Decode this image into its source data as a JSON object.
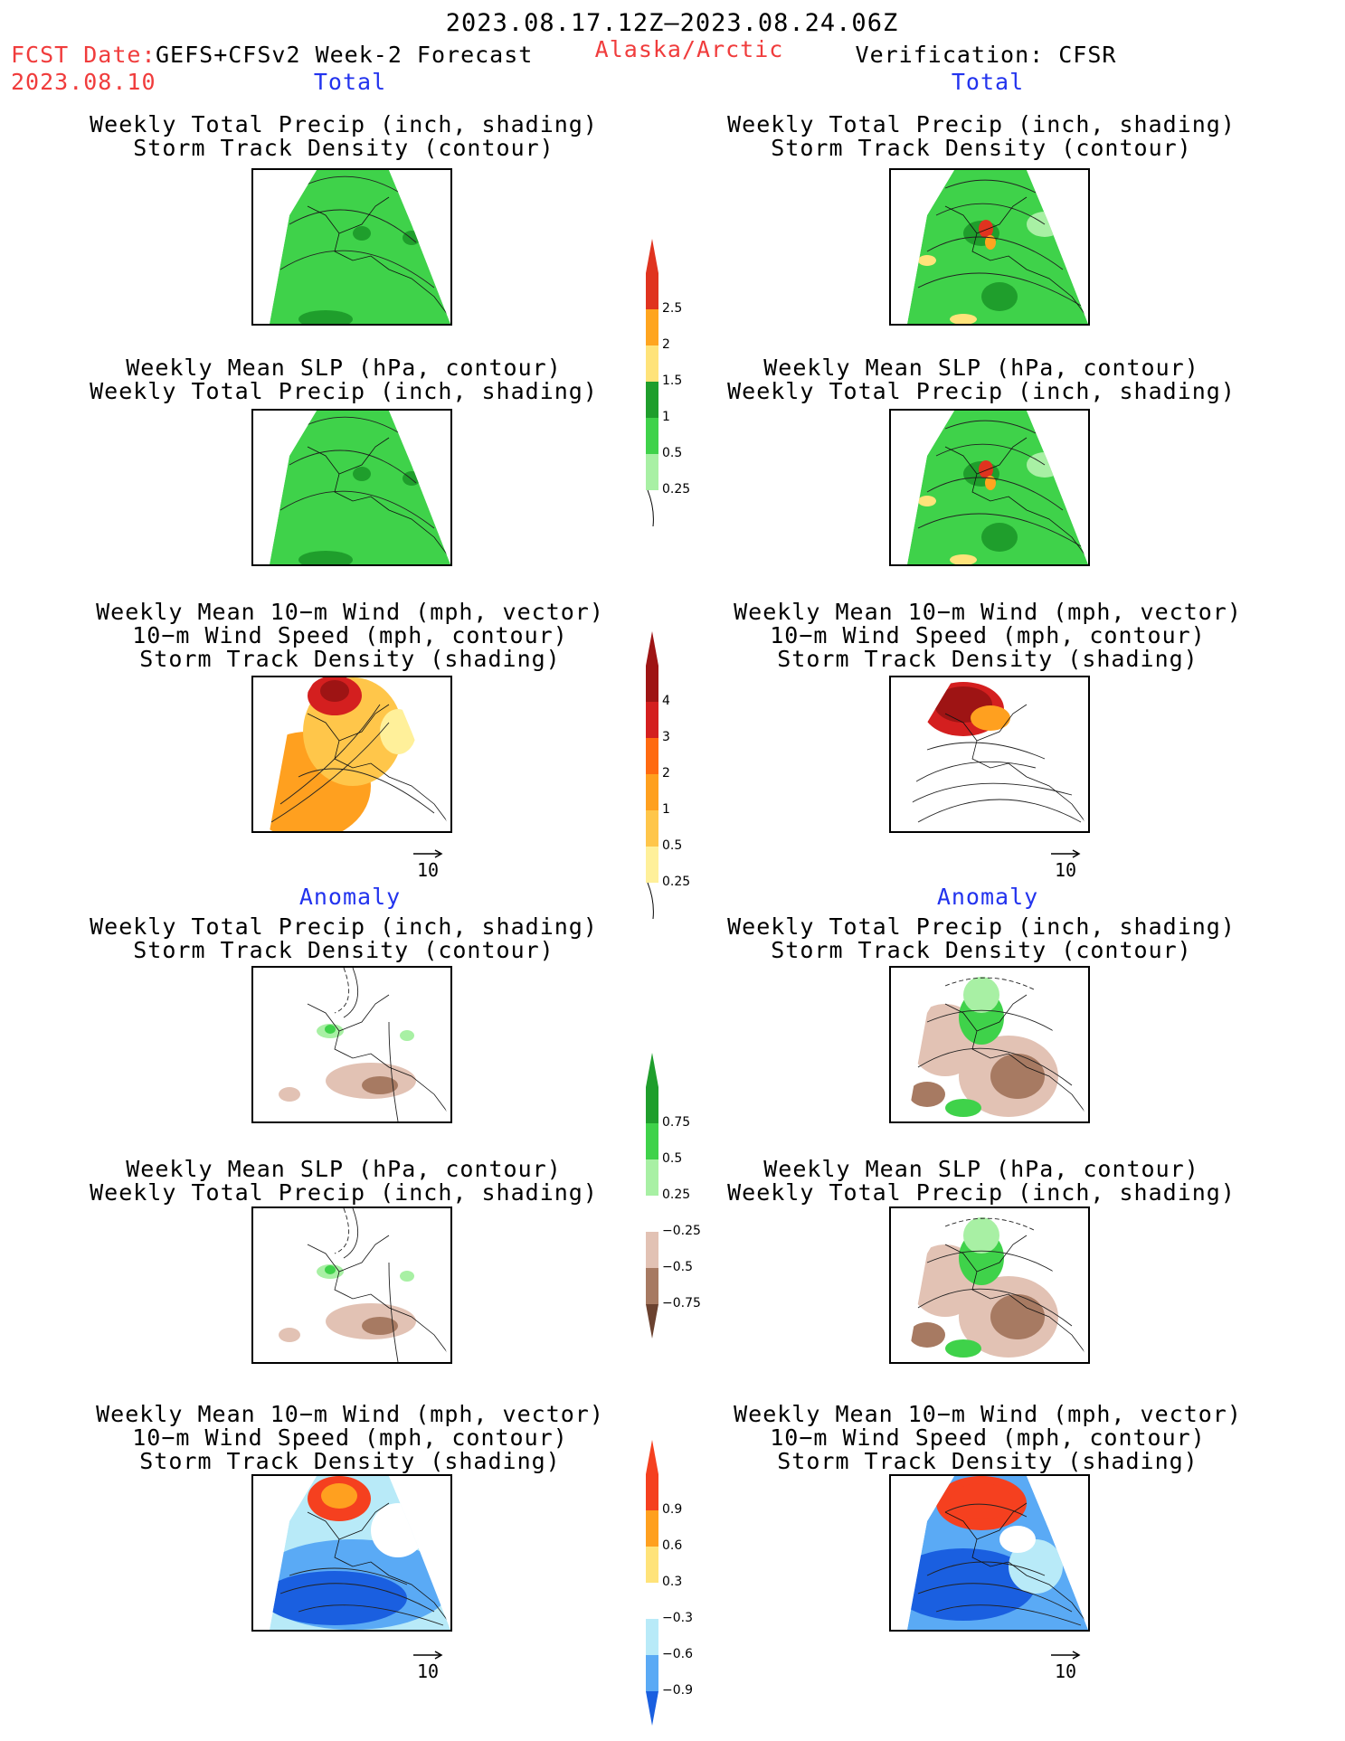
{
  "header": {
    "period": "2023.08.17.12Z–2023.08.24.06Z",
    "fcst_label": "FCST Date:",
    "fcst_model": "GEFS+CFSv2 Week-2 Forecast",
    "fcst_date": "2023.08.10",
    "region": "Alaska/Arctic",
    "verification": "Verification: CFSR"
  },
  "sections": {
    "total_left": "Total",
    "total_right": "Total",
    "anomaly_left": "Anomaly",
    "anomaly_right": "Anomaly"
  },
  "panel_titles": {
    "precip_storm": "Weekly Total Precip (inch, shading)\nStorm Track Density (contour)",
    "slp_precip": "Weekly Mean SLP (hPa, contour)\nWeekly Total Precip (inch, shading)",
    "wind_storm": "Weekly Mean 10−m Wind (mph, vector)\n10−m Wind Speed (mph, contour)\nStorm Track Density (shading)"
  },
  "vector_ref": "10",
  "colorbars": {
    "precip_total": {
      "labels": [
        "2.5",
        "2",
        "1.5",
        "1",
        "0.5",
        "0.25"
      ],
      "colors": [
        "#e0331f",
        "#ffa51f",
        "#ffe37a",
        "#1f9e2c",
        "#3fd24a",
        "#a8f0a4"
      ]
    },
    "storm_total": {
      "labels": [
        "4",
        "3",
        "2",
        "1",
        "0.5",
        "0.25"
      ],
      "colors": [
        "#9e1414",
        "#d41f1f",
        "#ff6a10",
        "#ffa01f",
        "#ffc64a",
        "#fff09a"
      ]
    },
    "precip_anom": {
      "labels": [
        "0.75",
        "0.5",
        "0.25",
        "−0.25",
        "−0.5",
        "−0.75"
      ],
      "colors": [
        "#1f9e2c",
        "#3fd24a",
        "#a8f0a4",
        "#ffffff",
        "#e2c2b4",
        "#a77a62",
        "#6b4230"
      ]
    },
    "storm_anom": {
      "labels": [
        "0.9",
        "0.6",
        "0.3",
        "−0.3",
        "−0.6",
        "−0.9"
      ],
      "colors": [
        "#f5401f",
        "#ffa01f",
        "#ffe37a",
        "#ffffff",
        "#b8eaf8",
        "#5aaaf5",
        "#1a5fe0"
      ]
    }
  }
}
